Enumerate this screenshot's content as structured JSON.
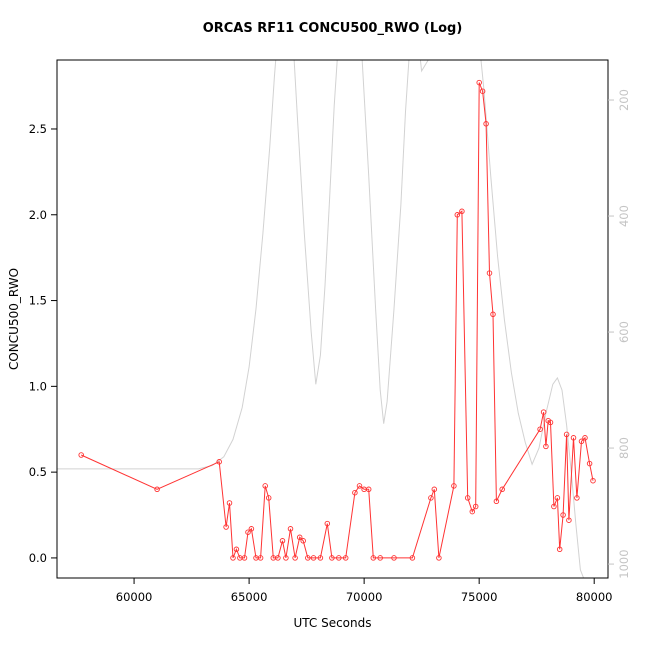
{
  "chart_data": {
    "type": "line",
    "title": "ORCAS RF11 CONCU500_RWO (Log)",
    "xlabel": "UTC Seconds",
    "ylabel": "CONCU500_RWO",
    "grid": false,
    "legend": "none",
    "x_axis": {
      "lim": [
        56650,
        80600
      ],
      "ticks": [
        60000,
        65000,
        70000,
        75000,
        80000
      ],
      "tick_labels": [
        "60000",
        "65000",
        "70000",
        "75000",
        "80000"
      ]
    },
    "left_axis": {
      "lim": [
        -0.117,
        2.902
      ],
      "ticks": [
        0,
        0.5,
        1.0,
        1.5,
        2.0,
        2.5
      ],
      "tick_labels": [
        "0.0",
        "0.5",
        "1.0",
        "1.5",
        "2.0",
        "2.5"
      ],
      "color": "#000000"
    },
    "right_axis": {
      "lim": [
        1024,
        131
      ],
      "ticks": [
        200,
        400,
        600,
        800,
        1000
      ],
      "tick_labels": [
        "200",
        "400",
        "600",
        "800",
        "1000"
      ],
      "color": "#c4c4c4"
    },
    "series": [
      {
        "name": "CONCU500_RWO",
        "axis": "left",
        "color": "#ff3333",
        "marker": "circle",
        "points": [
          [
            57700,
            0.6
          ],
          [
            61000,
            0.4
          ],
          [
            63700,
            0.56
          ],
          [
            64000,
            0.18
          ],
          [
            64150,
            0.32
          ],
          [
            64300,
            0
          ],
          [
            64450,
            0.05
          ],
          [
            64600,
            0
          ],
          [
            64800,
            0
          ],
          [
            64950,
            0.15
          ],
          [
            65100,
            0.17
          ],
          [
            65300,
            0
          ],
          [
            65500,
            0
          ],
          [
            65700,
            0.42
          ],
          [
            65850,
            0.35
          ],
          [
            66050,
            0
          ],
          [
            66250,
            0
          ],
          [
            66450,
            0.1
          ],
          [
            66600,
            0
          ],
          [
            66800,
            0.17
          ],
          [
            67000,
            0
          ],
          [
            67200,
            0.12
          ],
          [
            67350,
            0.1
          ],
          [
            67550,
            0
          ],
          [
            67800,
            0
          ],
          [
            68100,
            0
          ],
          [
            68400,
            0.2
          ],
          [
            68600,
            0
          ],
          [
            68900,
            0
          ],
          [
            69200,
            0
          ],
          [
            69600,
            0.38
          ],
          [
            69800,
            0.42
          ],
          [
            70000,
            0.4
          ],
          [
            70200,
            0.4
          ],
          [
            70400,
            0
          ],
          [
            70700,
            0
          ],
          [
            71300,
            0
          ],
          [
            72100,
            0
          ],
          [
            72900,
            0.35
          ],
          [
            73050,
            0.4
          ],
          [
            73250,
            0
          ],
          [
            73900,
            0.42
          ],
          [
            74050,
            2.0
          ],
          [
            74250,
            2.02
          ],
          [
            74500,
            0.35
          ],
          [
            74700,
            0.27
          ],
          [
            74850,
            0.3
          ],
          [
            75000,
            2.77
          ],
          [
            75150,
            2.72
          ],
          [
            75300,
            2.53
          ],
          [
            75450,
            1.66
          ],
          [
            75600,
            1.42
          ],
          [
            75750,
            0.33
          ],
          [
            76000,
            0.4
          ],
          [
            77650,
            0.75
          ],
          [
            77800,
            0.85
          ],
          [
            77900,
            0.65
          ],
          [
            78000,
            0.8
          ],
          [
            78100,
            0.79
          ],
          [
            78250,
            0.3
          ],
          [
            78400,
            0.35
          ],
          [
            78500,
            0.05
          ],
          [
            78650,
            0.25
          ],
          [
            78800,
            0.72
          ],
          [
            78900,
            0.22
          ],
          [
            79100,
            0.7
          ],
          [
            79250,
            0.35
          ],
          [
            79450,
            0.68
          ],
          [
            79600,
            0.7
          ],
          [
            79800,
            0.55
          ],
          [
            79950,
            0.45
          ]
        ]
      },
      {
        "name": "secondary-gray-trace",
        "axis": "right",
        "color": "#d2d2d2",
        "marker": "none",
        "points": [
          [
            56650,
            836
          ],
          [
            62800,
            836
          ],
          [
            63400,
            830
          ],
          [
            63900,
            815
          ],
          [
            64300,
            785
          ],
          [
            64700,
            730
          ],
          [
            65000,
            660
          ],
          [
            65300,
            560
          ],
          [
            65600,
            430
          ],
          [
            65900,
            280
          ],
          [
            66100,
            160
          ],
          [
            66300,
            60
          ],
          [
            66600,
            20
          ],
          [
            66900,
            90
          ],
          [
            67100,
            230
          ],
          [
            67400,
            430
          ],
          [
            67700,
            600
          ],
          [
            67900,
            690
          ],
          [
            68100,
            640
          ],
          [
            68300,
            520
          ],
          [
            68500,
            370
          ],
          [
            68700,
            210
          ],
          [
            68900,
            90
          ],
          [
            69100,
            20
          ],
          [
            69600,
            10
          ],
          [
            69900,
            120
          ],
          [
            70200,
            330
          ],
          [
            70500,
            560
          ],
          [
            70700,
            700
          ],
          [
            70850,
            758
          ],
          [
            71000,
            720
          ],
          [
            71300,
            560
          ],
          [
            71600,
            380
          ],
          [
            71800,
            220
          ],
          [
            72000,
            100
          ],
          [
            72200,
            40
          ],
          [
            72500,
            150
          ],
          [
            72800,
            130
          ],
          [
            73000,
            60
          ],
          [
            73300,
            10
          ],
          [
            74600,
            10
          ],
          [
            74900,
            60
          ],
          [
            75200,
            180
          ],
          [
            75500,
            330
          ],
          [
            75800,
            470
          ],
          [
            76100,
            580
          ],
          [
            76400,
            670
          ],
          [
            76700,
            740
          ],
          [
            77000,
            790
          ],
          [
            77300,
            828
          ],
          [
            77600,
            800
          ],
          [
            77900,
            740
          ],
          [
            78200,
            690
          ],
          [
            78400,
            679
          ],
          [
            78600,
            700
          ],
          [
            78800,
            760
          ],
          [
            79000,
            840
          ],
          [
            79200,
            930
          ],
          [
            79400,
            1010
          ],
          [
            79650,
            1035
          ]
        ]
      }
    ]
  }
}
